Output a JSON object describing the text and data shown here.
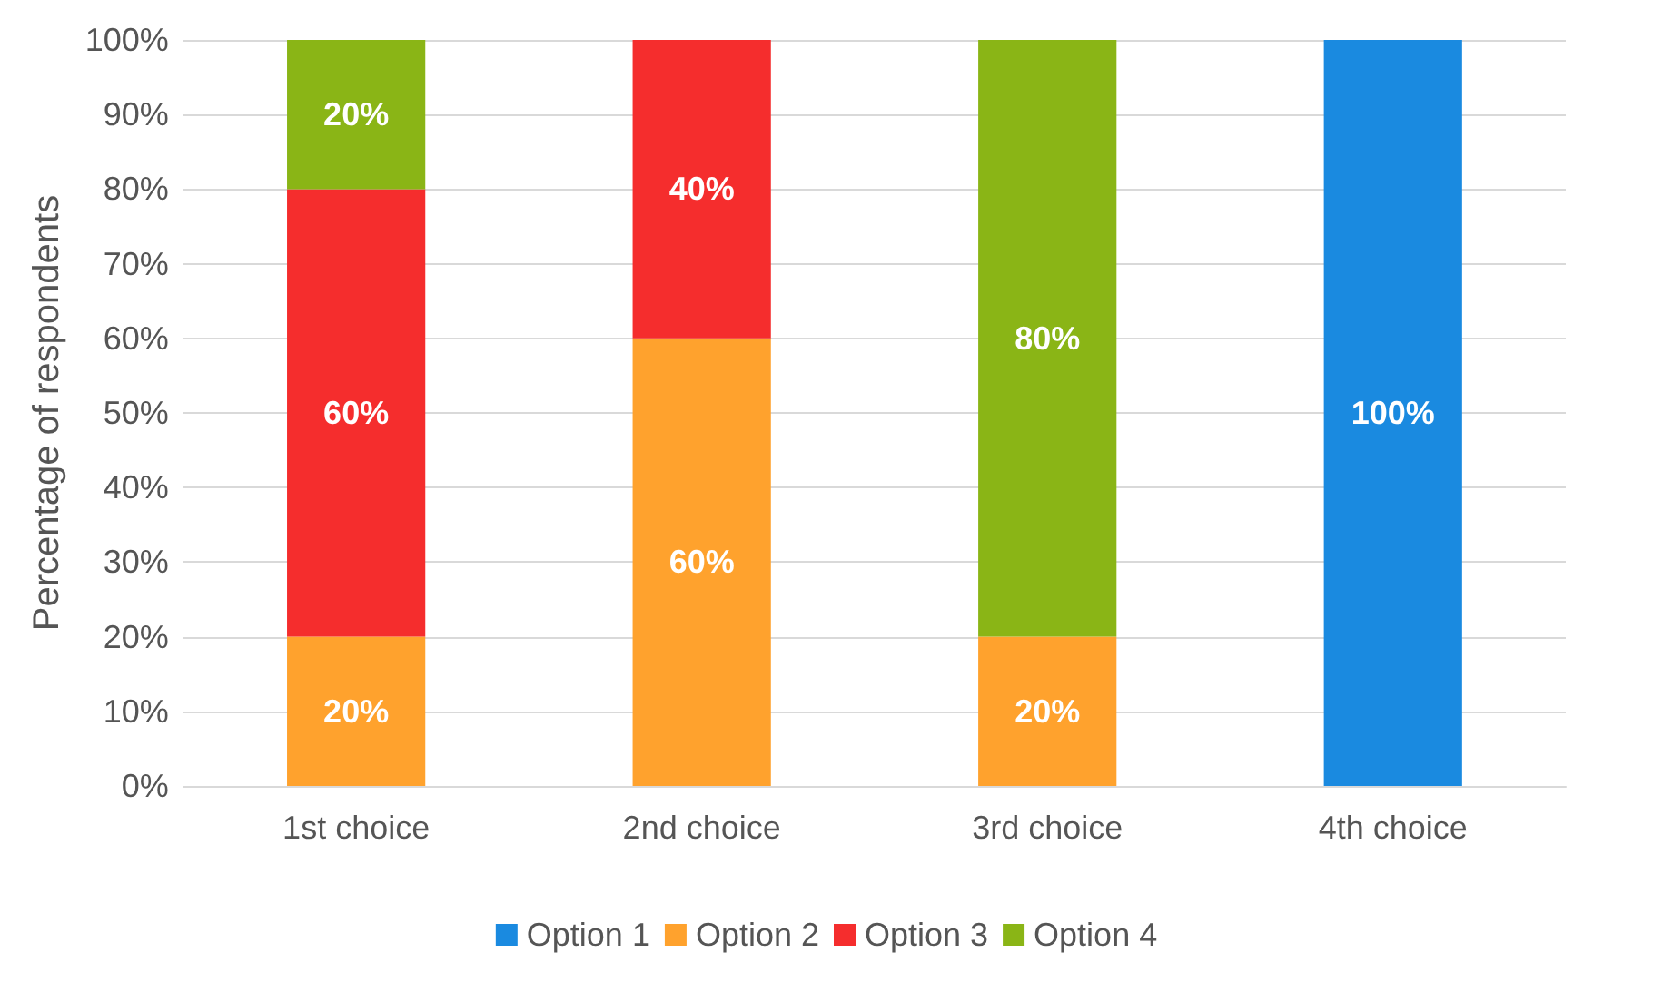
{
  "chart_data": {
    "type": "bar",
    "stacked": true,
    "ylabel": "Percentage of respondents",
    "categories": [
      "1st choice",
      "2nd choice",
      "3rd choice",
      "4th choice"
    ],
    "series": [
      {
        "name": "Option 1",
        "color": "#1a8ae0",
        "values": [
          null,
          null,
          null,
          100
        ],
        "value_labels": [
          null,
          null,
          null,
          "100%"
        ]
      },
      {
        "name": "Option 2",
        "color": "#ffa22d",
        "values": [
          20,
          60,
          20,
          null
        ],
        "value_labels": [
          "20%",
          "60%",
          "20%",
          null
        ]
      },
      {
        "name": "Option 3",
        "color": "#f52d2d",
        "values": [
          60,
          40,
          null,
          null
        ],
        "value_labels": [
          "60%",
          "40%",
          null,
          null
        ]
      },
      {
        "name": "Option 4",
        "color": "#8ab516",
        "values": [
          20,
          null,
          80,
          null
        ],
        "value_labels": [
          "20%",
          null,
          "80%",
          null
        ]
      }
    ],
    "ylim": [
      0,
      100
    ],
    "yticks": [
      {
        "value": 0,
        "label": "0%"
      },
      {
        "value": 10,
        "label": "10%"
      },
      {
        "value": 20,
        "label": "20%"
      },
      {
        "value": 30,
        "label": "30%"
      },
      {
        "value": 40,
        "label": "40%"
      },
      {
        "value": 50,
        "label": "50%"
      },
      {
        "value": 60,
        "label": "60%"
      },
      {
        "value": 70,
        "label": "70%"
      },
      {
        "value": 80,
        "label": "80%"
      },
      {
        "value": 90,
        "label": "90%"
      },
      {
        "value": 100,
        "label": "100%"
      }
    ],
    "grid": "y",
    "legend": "bottom"
  }
}
